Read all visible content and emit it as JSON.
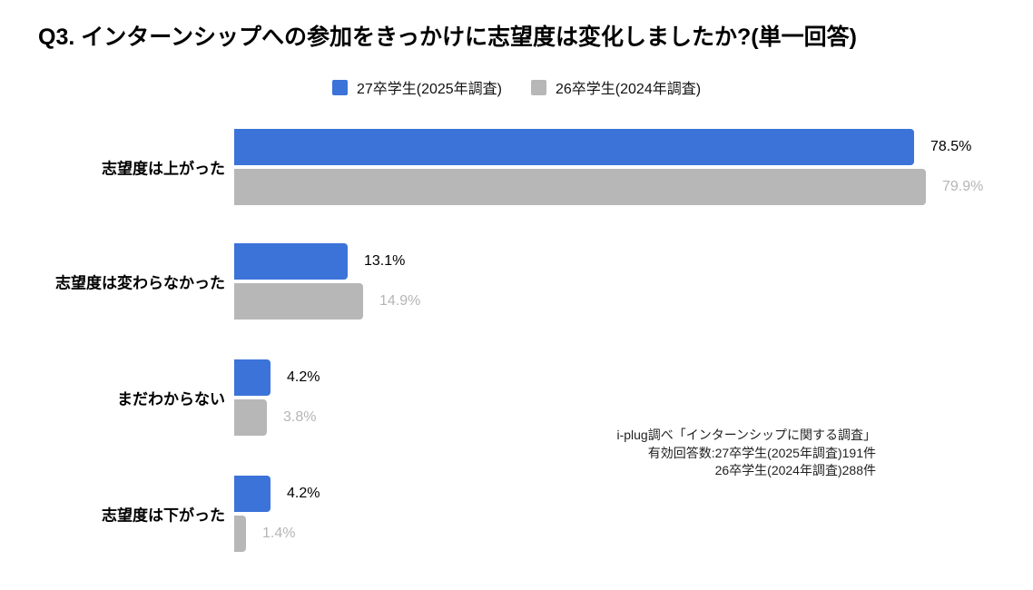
{
  "title": "Q3. インターンシップへの参加をきっかけに志望度は変化しましたか?(単一回答)",
  "legend": {
    "items": [
      {
        "label": "27卒学生(2025年調査)",
        "color": "#3b73d9"
      },
      {
        "label": "26卒学生(2024年調査)",
        "color": "#b7b7b7"
      }
    ]
  },
  "source_note": {
    "lines": [
      "i-plug調べ「インターンシップに関する調査」",
      "有効回答数:27卒学生(2025年調査)191件",
      "26卒学生(2024年調査)288件"
    ]
  },
  "chart_data": {
    "type": "bar",
    "orientation": "horizontal",
    "title": "Q3. インターンシップへの参加をきっかけに志望度は変化しましたか?(単一回答)",
    "categories": [
      "志望度は上がった",
      "志望度は変わらなかった",
      "まだわからない",
      "志望度は下がった"
    ],
    "series": [
      {
        "name": "27卒学生(2025年調査)",
        "color": "#3b73d9",
        "label_color": "#000000",
        "values": [
          78.5,
          13.1,
          4.2,
          4.2
        ]
      },
      {
        "name": "26卒学生(2024年調査)",
        "color": "#b7b7b7",
        "label_color": "#b5b5b5",
        "values": [
          79.9,
          14.9,
          3.8,
          1.4
        ]
      }
    ],
    "value_suffix": "%",
    "xlim": [
      0,
      100
    ],
    "legend_position": "top",
    "grid": false,
    "value_labels": "outside-end"
  }
}
